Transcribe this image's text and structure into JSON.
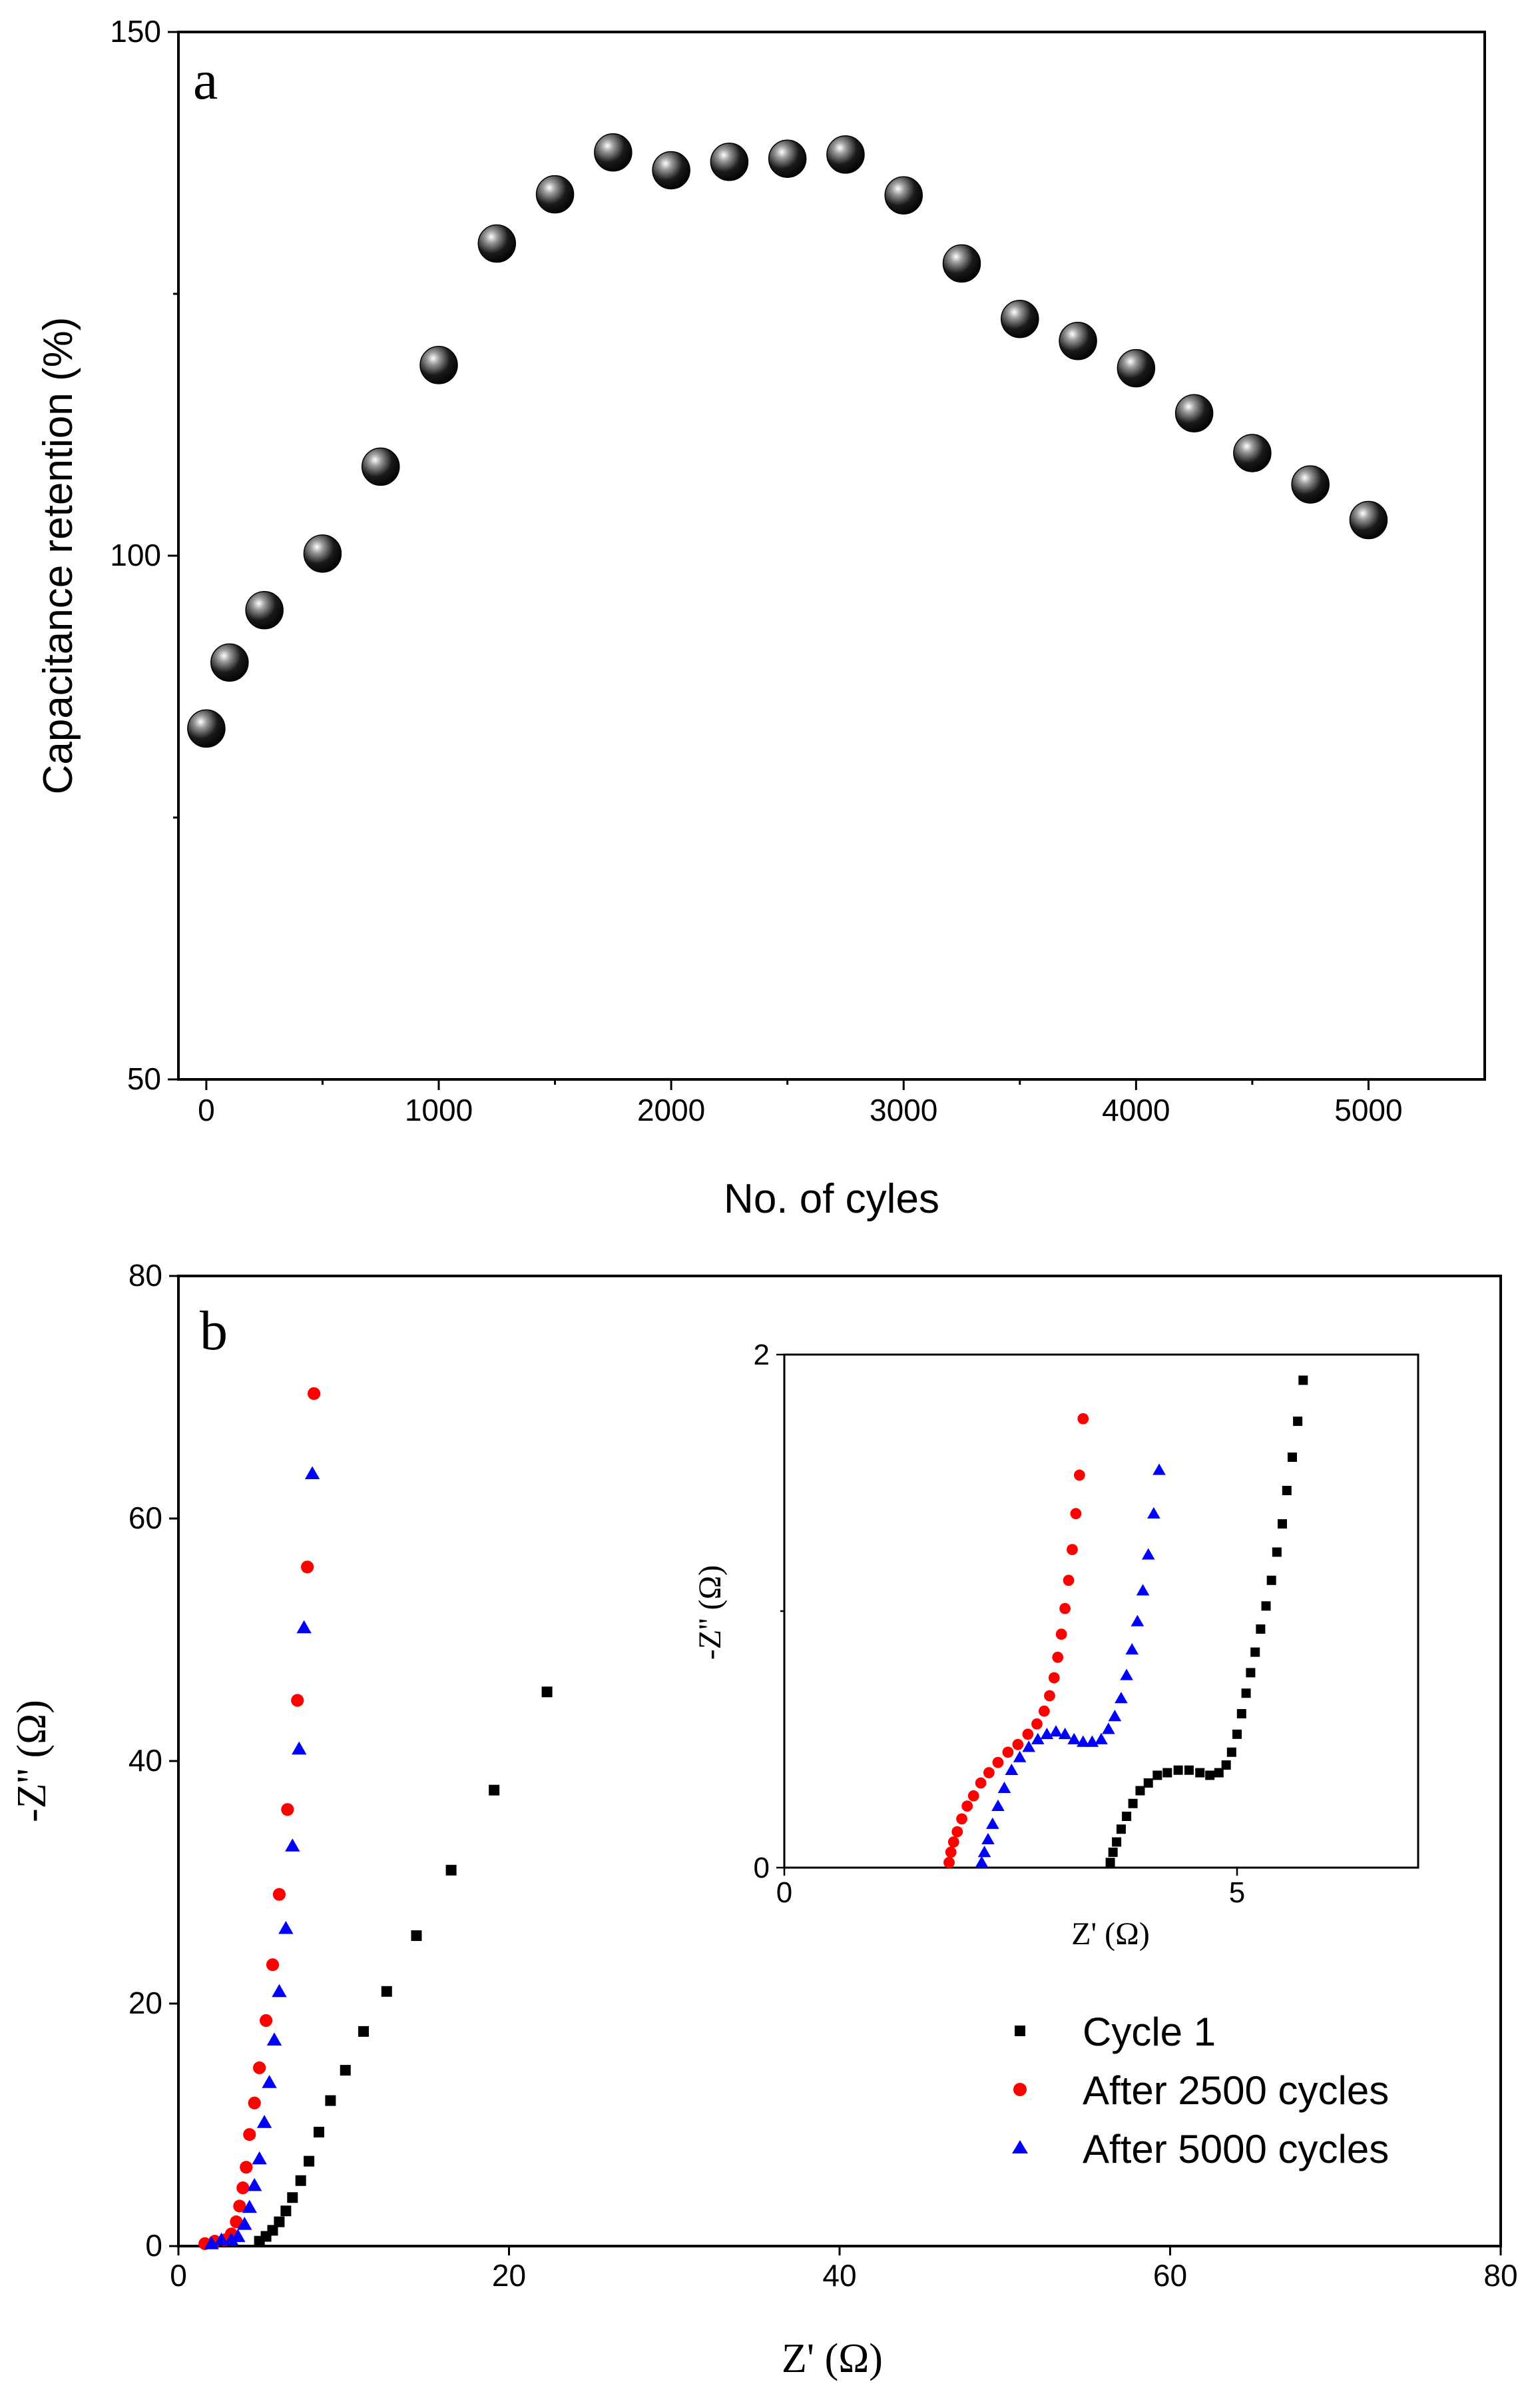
{
  "colors": {
    "cycle1": "#000000",
    "after2500": "#ff0000",
    "after5000": "#0000ff",
    "sphere": "#111111"
  },
  "chart_data": [
    {
      "type": "scatter",
      "panel_label": "a",
      "xlabel": "No. of cyles",
      "ylabel": "Capacitance retention (%)",
      "xlim": [
        -120,
        5500
      ],
      "ylim": [
        50,
        150
      ],
      "xticks": [
        0,
        1000,
        2000,
        3000,
        4000,
        5000
      ],
      "xtick_labels": [
        "0",
        "1000",
        "2000",
        "3000",
        "4000",
        "5000"
      ],
      "yticks": [
        50,
        100,
        150
      ],
      "ytick_labels": [
        "50",
        "100",
        "150"
      ],
      "series": [
        {
          "name": "Capacitance retention",
          "marker": "sphere",
          "x": [
            0,
            100,
            250,
            500,
            750,
            1000,
            1250,
            1500,
            1750,
            2000,
            2250,
            2500,
            2750,
            3000,
            3250,
            3500,
            3750,
            4000,
            4250,
            4500,
            4750,
            5000
          ],
          "y": [
            83.5,
            89.8,
            94.8,
            100.2,
            108.5,
            118.2,
            129.8,
            134.5,
            138.5,
            136.8,
            137.6,
            137.9,
            138.3,
            134.4,
            127.9,
            122.6,
            120.5,
            117.9,
            113.6,
            109.8,
            106.8,
            103.4
          ]
        }
      ]
    },
    {
      "type": "scatter",
      "panel_label": "b",
      "xlabel": "Z' (Ω)",
      "ylabel": "-Z'' (Ω)",
      "xlim": [
        0,
        80
      ],
      "ylim": [
        0,
        80
      ],
      "xticks": [
        0,
        20,
        40,
        60,
        80
      ],
      "xtick_labels": [
        "0",
        "20",
        "40",
        "60",
        "80"
      ],
      "yticks": [
        0,
        20,
        40,
        60,
        80
      ],
      "ytick_labels": [
        "0",
        "20",
        "40",
        "60",
        "80"
      ],
      "legend_position": "bottom-right",
      "series": [
        {
          "name": "Cycle 1",
          "marker": "square",
          "x": [
            4.9,
            5.3,
            5.7,
            6.1,
            6.5,
            6.9,
            7.4,
            7.9,
            8.5,
            9.2,
            10.1,
            11.2,
            12.6,
            14.4,
            16.5,
            19.1,
            22.3
          ],
          "y": [
            0.4,
            0.8,
            1.3,
            2.0,
            2.9,
            4.0,
            5.4,
            7.0,
            9.4,
            12.0,
            14.5,
            17.7,
            21.0,
            25.6,
            31.0,
            37.6,
            45.7
          ]
        },
        {
          "name": "After 2500 cycles",
          "marker": "circle",
          "x": [
            1.6,
            2.2,
            2.8,
            3.2,
            3.5,
            3.7,
            3.9,
            4.1,
            4.3,
            4.6,
            4.9,
            5.3,
            5.7,
            6.1,
            6.6,
            7.2,
            7.8,
            8.2
          ],
          "y": [
            0.2,
            0.4,
            0.5,
            1.0,
            2.0,
            3.3,
            4.8,
            6.5,
            9.2,
            11.8,
            14.7,
            18.6,
            23.2,
            29.0,
            36.0,
            45.0,
            56.0,
            70.3
          ]
        },
        {
          "name": "After 5000 cycles",
          "marker": "triangle",
          "x": [
            2.0,
            2.6,
            3.2,
            3.6,
            4.0,
            4.3,
            4.6,
            4.9,
            5.2,
            5.5,
            5.8,
            6.1,
            6.5,
            6.9,
            7.3,
            7.6,
            8.1
          ],
          "y": [
            0.2,
            0.5,
            0.5,
            0.8,
            1.8,
            3.2,
            5.0,
            7.2,
            10.2,
            13.5,
            17.0,
            21.0,
            26.2,
            33.0,
            41.0,
            51.0,
            63.7
          ]
        }
      ],
      "inset": {
        "xlabel": "Z' (Ω)",
        "ylabel": "-Z'' (Ω)",
        "xlim": [
          0,
          7
        ],
        "ylim": [
          0,
          2
        ],
        "xticks": [
          0,
          5
        ],
        "xtick_labels": [
          "0",
          "5"
        ],
        "yticks": [
          0,
          2
        ],
        "ytick_labels": [
          "0",
          "2"
        ],
        "series": [
          {
            "name": "Cycle 1",
            "marker": "square",
            "x": [
              3.6,
              3.63,
              3.67,
              3.72,
              3.78,
              3.85,
              3.93,
              4.02,
              4.12,
              4.23,
              4.35,
              4.47,
              4.59,
              4.7,
              4.8,
              4.88,
              4.94,
              5.0,
              5.05,
              5.1,
              5.15,
              5.2,
              5.26,
              5.32,
              5.38,
              5.44,
              5.5,
              5.55,
              5.61,
              5.67,
              5.73
            ],
            "y": [
              0.02,
              0.06,
              0.1,
              0.15,
              0.2,
              0.25,
              0.3,
              0.33,
              0.36,
              0.37,
              0.38,
              0.38,
              0.37,
              0.36,
              0.37,
              0.4,
              0.45,
              0.52,
              0.6,
              0.68,
              0.76,
              0.84,
              0.93,
              1.02,
              1.12,
              1.23,
              1.34,
              1.47,
              1.6,
              1.74,
              1.9
            ]
          },
          {
            "name": "After 2500 cycles",
            "marker": "circle",
            "x": [
              1.82,
              1.84,
              1.87,
              1.91,
              1.96,
              2.02,
              2.09,
              2.17,
              2.26,
              2.36,
              2.47,
              2.58,
              2.69,
              2.79,
              2.87,
              2.93,
              2.98,
              3.02,
              3.06,
              3.1,
              3.14,
              3.18,
              3.22,
              3.26,
              3.3
            ],
            "y": [
              0.02,
              0.06,
              0.1,
              0.14,
              0.19,
              0.24,
              0.28,
              0.33,
              0.37,
              0.41,
              0.45,
              0.48,
              0.52,
              0.56,
              0.61,
              0.67,
              0.74,
              0.82,
              0.91,
              1.01,
              1.12,
              1.24,
              1.38,
              1.53,
              1.75
            ]
          },
          {
            "name": "After 5000 cycles",
            "marker": "triangle",
            "x": [
              2.18,
              2.21,
              2.25,
              2.3,
              2.36,
              2.43,
              2.51,
              2.6,
              2.7,
              2.8,
              2.9,
              3.0,
              3.1,
              3.2,
              3.3,
              3.4,
              3.5,
              3.58,
              3.65,
              3.72,
              3.78,
              3.84,
              3.9,
              3.96,
              4.02,
              4.08,
              4.14
            ],
            "y": [
              0.02,
              0.06,
              0.11,
              0.17,
              0.24,
              0.31,
              0.38,
              0.43,
              0.47,
              0.5,
              0.52,
              0.53,
              0.52,
              0.5,
              0.49,
              0.49,
              0.5,
              0.54,
              0.59,
              0.66,
              0.75,
              0.85,
              0.96,
              1.08,
              1.22,
              1.38,
              1.55
            ]
          }
        ]
      }
    }
  ]
}
